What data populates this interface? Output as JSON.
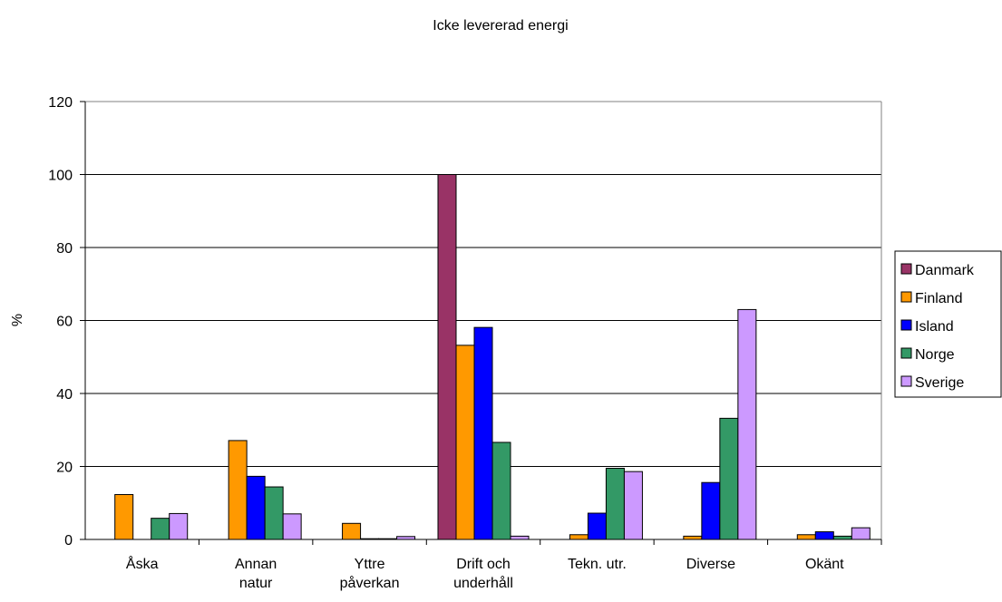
{
  "chart_data": {
    "type": "bar",
    "title": "Icke levererad energi",
    "ylabel": "%",
    "xlabel": "",
    "ylim": [
      0,
      120
    ],
    "yticks": [
      "0",
      "20",
      "40",
      "60",
      "80",
      "100",
      "120"
    ],
    "grid": true,
    "legend_position": "right",
    "categories": [
      [
        "Åska"
      ],
      [
        "Annan",
        "natur"
      ],
      [
        "Yttre",
        "påverkan"
      ],
      [
        "Drift och",
        "underhåll"
      ],
      [
        "Tekn. utr."
      ],
      [
        "Diverse"
      ],
      [
        "Okänt"
      ]
    ],
    "series": [
      {
        "name": "Danmark",
        "color": "#993366",
        "values": [
          0,
          0,
          0,
          100,
          0,
          0,
          0
        ]
      },
      {
        "name": "Finland",
        "color": "#ff9900",
        "values": [
          12.3,
          27.1,
          4.4,
          53.2,
          1.3,
          0.9,
          1.3
        ]
      },
      {
        "name": "Island",
        "color": "#0000ff",
        "values": [
          0,
          17.3,
          0.2,
          58.1,
          7.2,
          15.6,
          2.1
        ]
      },
      {
        "name": "Norge",
        "color": "#339966",
        "values": [
          5.8,
          14.4,
          0.2,
          26.6,
          19.5,
          33.2,
          0.9
        ]
      },
      {
        "name": "Sverige",
        "color": "#cc99ff",
        "values": [
          7.1,
          7.0,
          0.8,
          0.9,
          18.6,
          63.0,
          3.2
        ]
      }
    ]
  }
}
